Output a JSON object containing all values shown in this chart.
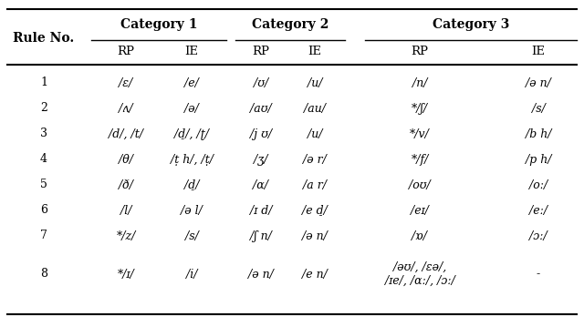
{
  "col_headers_sub": [
    "RP",
    "IE",
    "RP",
    "IE",
    "RP",
    "IE"
  ],
  "category_headers": [
    "Category 1",
    "Category 2",
    "Category 3"
  ],
  "rows": [
    [
      "1",
      "/ɛ/",
      "/e/",
      "/ʊ/",
      "/u/",
      "/n/",
      "/ə n/"
    ],
    [
      "2",
      "/ʌ/",
      "/ə/",
      "/aʊ/",
      "/au/",
      "*/ʃ/",
      "/s/"
    ],
    [
      "3",
      "/d/, /t/",
      "/d̠/, /ʈ/",
      "/j ʊ/",
      "/u/",
      "*/v/",
      "/b h/"
    ],
    [
      "4",
      "/θ/",
      "/ṭ h/, /ṭ/",
      "/ʒ/",
      "/ə r/",
      "*/f/",
      "/p h/"
    ],
    [
      "5",
      "/ð/",
      "/d̠/",
      "/ɑ/",
      "/a r/",
      "/oʊ/",
      "/oː/"
    ],
    [
      "6",
      "/l/",
      "/ə l/",
      "/ɪ d/",
      "/e d̠/",
      "/eɪ/",
      "/eː/"
    ],
    [
      "7",
      "*/z/",
      "/s/",
      "/ʃ n/",
      "/ə n/",
      "/ɒ/",
      "/ɔː/"
    ],
    [
      "8",
      "*/ɪ/",
      "/i/",
      "/ə n/",
      "/e n/",
      "/əʊ/, /ɛə/,\n/ɪe/, /ɑː/, /ɔː/",
      "-"
    ]
  ],
  "bg_color": "#ffffff",
  "text_color": "#000000"
}
